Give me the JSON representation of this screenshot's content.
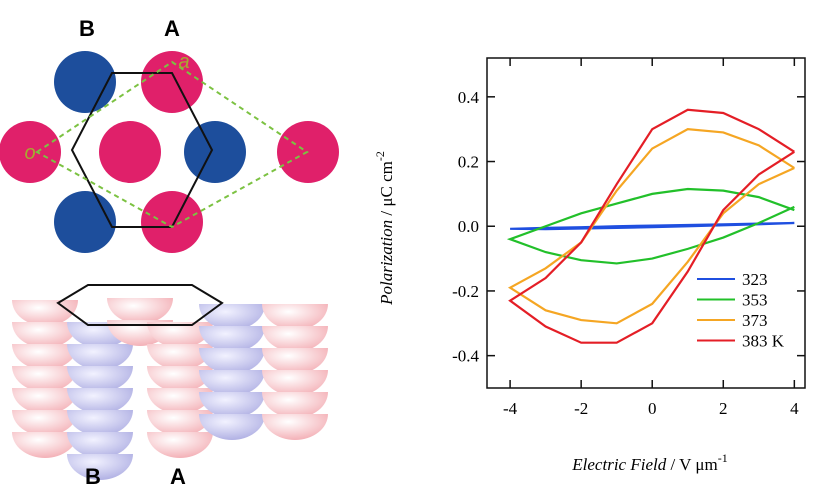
{
  "diagram": {
    "top_labels": [
      "B",
      "A"
    ],
    "lattice_labels": [
      "a",
      "o"
    ],
    "bottom_labels": [
      "B",
      "A"
    ]
  },
  "chart_data": {
    "type": "line",
    "y_label": {
      "italic": "Polarization",
      "rest": " / μC cm",
      "sup": "-2"
    },
    "x_label": {
      "italic": "Electric Field",
      "rest": " / V μm",
      "sup": "-1"
    },
    "x": [
      4,
      3,
      2,
      1,
      0,
      -1,
      -2,
      -3,
      -4,
      -3,
      -2,
      -1,
      0,
      1,
      2,
      3,
      4
    ],
    "series": [
      {
        "name": "323",
        "color": "#1f4fe0",
        "values": [
          0.01,
          0.008,
          0.006,
          0.004,
          0.002,
          0.0,
          -0.003,
          -0.005,
          -0.008,
          -0.009,
          -0.007,
          -0.005,
          -0.003,
          0.0,
          0.003,
          0.006,
          0.01
        ]
      },
      {
        "name": "353",
        "color": "#22c02a",
        "values": [
          0.05,
          0.09,
          0.11,
          0.115,
          0.1,
          0.07,
          0.04,
          0.0,
          -0.04,
          -0.08,
          -0.105,
          -0.115,
          -0.1,
          -0.07,
          -0.035,
          0.01,
          0.06
        ]
      },
      {
        "name": "373",
        "color": "#f5a623",
        "values": [
          0.18,
          0.25,
          0.29,
          0.3,
          0.24,
          0.11,
          -0.05,
          -0.13,
          -0.19,
          -0.26,
          -0.29,
          -0.3,
          -0.24,
          -0.11,
          0.04,
          0.13,
          0.18
        ]
      },
      {
        "name": "383 K",
        "color": "#e41e26",
        "values": [
          0.23,
          0.3,
          0.35,
          0.36,
          0.3,
          0.13,
          -0.05,
          -0.16,
          -0.23,
          -0.31,
          -0.36,
          -0.36,
          -0.3,
          -0.14,
          0.05,
          0.16,
          0.23
        ]
      }
    ],
    "xlim": [
      -4.65,
      4.3
    ],
    "xticks": [
      -4,
      -2,
      0,
      2,
      4
    ],
    "ylim": [
      -0.5,
      0.52
    ],
    "yticks": [
      -0.4,
      -0.2,
      0.0,
      0.2,
      0.4
    ]
  }
}
